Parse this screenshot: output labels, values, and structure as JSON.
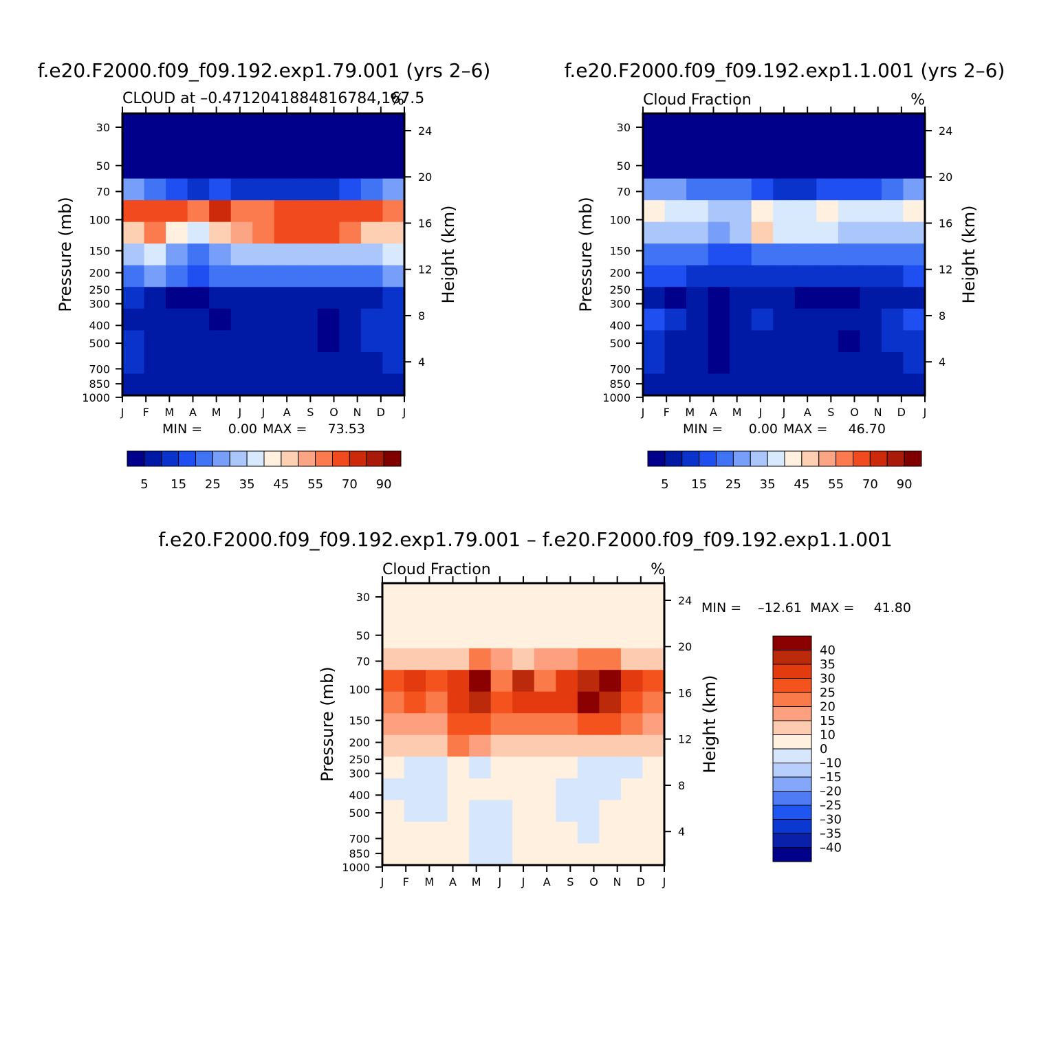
{
  "colors": {
    "cloud_scale": [
      "#00008a",
      "#001aa5",
      "#0a33cc",
      "#1f4ff0",
      "#4074f5",
      "#779ef8",
      "#abc6fa",
      "#d8e8fd",
      "#fff0e0",
      "#fdd0b4",
      "#fca585",
      "#fb7a4e",
      "#f04a1e",
      "#cc2a0b",
      "#aa1a08",
      "#800000"
    ],
    "diff_scale": [
      "#00008a",
      "#0a1faa",
      "#0a38d0",
      "#1f55f0",
      "#4f7cf5",
      "#85a7fa",
      "#b8cffc",
      "#d6e6fd",
      "#fff0e0",
      "#fdcbb0",
      "#fca080",
      "#fb7a4a",
      "#f5531e",
      "#e33a10",
      "#bb2a0a",
      "#8b0000"
    ]
  },
  "chart_data": [
    {
      "id": "panel_1",
      "type": "heatmap",
      "title": "f.e20.F2000.f09_f09.192.exp1.79.001 (yrs 2–6)",
      "subtitle_left": "CLOUD at –0.4712041884816784,167.5",
      "subtitle_right": "%",
      "x_ticks": [
        "J",
        "F",
        "M",
        "A",
        "M",
        "J",
        "J",
        "A",
        "S",
        "O",
        "N",
        "D",
        "J"
      ],
      "y_ticks_pressure": [
        "30",
        "50",
        "70",
        "100",
        "150",
        "200",
        "250",
        "300",
        "400",
        "500",
        "700",
        "850",
        "1000"
      ],
      "y_ticks_height": [
        "24",
        "20",
        "16",
        "12",
        "8",
        "4"
      ],
      "ylabel_left": "Pressure (mb)",
      "ylabel_right": "Height (km)",
      "min_label": "MIN =",
      "min_value": "0.00",
      "max_label": "MAX =",
      "max_value": "73.53",
      "colorbar_labels": [
        "5",
        "15",
        "25",
        "35",
        "45",
        "55",
        "70",
        "90"
      ],
      "values": [
        [
          0,
          0,
          0,
          0,
          0,
          0,
          0,
          0,
          0,
          0,
          0,
          0,
          0
        ],
        [
          0,
          0,
          0,
          0,
          0,
          0,
          0,
          0,
          0,
          0,
          0,
          0,
          0
        ],
        [
          0,
          0,
          0,
          0,
          0,
          0,
          0,
          0,
          0,
          0,
          0,
          0,
          0
        ],
        [
          25,
          22,
          18,
          12,
          18,
          10,
          10,
          10,
          12,
          12,
          15,
          22,
          25
        ],
        [
          60,
          68,
          60,
          58,
          72,
          55,
          58,
          60,
          63,
          66,
          64,
          62,
          58
        ],
        [
          45,
          55,
          40,
          38,
          45,
          50,
          58,
          60,
          60,
          62,
          58,
          48,
          45
        ],
        [
          30,
          35,
          25,
          22,
          28,
          30,
          32,
          32,
          30,
          30,
          32,
          32,
          35
        ],
        [
          22,
          25,
          20,
          18,
          22,
          22,
          20,
          22,
          22,
          22,
          22,
          22,
          25
        ],
        [
          10,
          8,
          4,
          4,
          5,
          7,
          7,
          7,
          6,
          7,
          7,
          8,
          10
        ],
        [
          8,
          8,
          8,
          7,
          4,
          8,
          8,
          8,
          7,
          3,
          6,
          10,
          12
        ],
        [
          10,
          8,
          8,
          7,
          7,
          8,
          8,
          8,
          6,
          3,
          6,
          10,
          14
        ],
        [
          10,
          8,
          6,
          7,
          5,
          8,
          8,
          8,
          7,
          7,
          7,
          8,
          10
        ],
        [
          9,
          8,
          8,
          8,
          8,
          8,
          8,
          8,
          8,
          8,
          8,
          8,
          9
        ]
      ]
    },
    {
      "id": "panel_2",
      "type": "heatmap",
      "title": "f.e20.F2000.f09_f09.192.exp1.1.001 (yrs 2–6)",
      "subtitle_left": "Cloud Fraction",
      "subtitle_right": "%",
      "x_ticks": [
        "J",
        "F",
        "M",
        "A",
        "M",
        "J",
        "J",
        "A",
        "S",
        "O",
        "N",
        "D",
        "J"
      ],
      "y_ticks_pressure": [
        "30",
        "50",
        "70",
        "100",
        "150",
        "200",
        "250",
        "300",
        "400",
        "500",
        "700",
        "850",
        "1000"
      ],
      "y_ticks_height": [
        "24",
        "20",
        "16",
        "12",
        "8",
        "4"
      ],
      "ylabel_left": "Pressure (mb)",
      "ylabel_right": "Height (km)",
      "min_label": "MIN =",
      "min_value": "0.00",
      "max_label": "MAX =",
      "max_value": "46.70",
      "colorbar_labels": [
        "5",
        "15",
        "25",
        "35",
        "45",
        "55",
        "70",
        "90"
      ],
      "values": [
        [
          0,
          0,
          0,
          0,
          0,
          0,
          0,
          0,
          0,
          0,
          0,
          0,
          0
        ],
        [
          0,
          0,
          0,
          0,
          0,
          0,
          0,
          0,
          0,
          0,
          0,
          0,
          0
        ],
        [
          0,
          0,
          0,
          0,
          0,
          0,
          0,
          0,
          0,
          0,
          0,
          0,
          0
        ],
        [
          25,
          25,
          20,
          20,
          20,
          15,
          12,
          12,
          15,
          15,
          15,
          20,
          25
        ],
        [
          40,
          38,
          35,
          30,
          30,
          42,
          35,
          38,
          42,
          35,
          35,
          35,
          40
        ],
        [
          33,
          33,
          30,
          28,
          32,
          45,
          35,
          35,
          35,
          32,
          32,
          32,
          33
        ],
        [
          20,
          20,
          20,
          18,
          18,
          22,
          22,
          22,
          22,
          22,
          22,
          22,
          20
        ],
        [
          15,
          15,
          14,
          12,
          12,
          14,
          14,
          14,
          14,
          14,
          14,
          14,
          15
        ],
        [
          6,
          4,
          5,
          2,
          5,
          6,
          6,
          3,
          2,
          3,
          5,
          6,
          6
        ],
        [
          18,
          12,
          8,
          3,
          8,
          10,
          8,
          8,
          8,
          5,
          8,
          12,
          18
        ],
        [
          12,
          8,
          8,
          3,
          8,
          8,
          8,
          8,
          8,
          4,
          8,
          10,
          14
        ],
        [
          10,
          8,
          8,
          3,
          8,
          8,
          8,
          8,
          8,
          8,
          8,
          8,
          10
        ],
        [
          8,
          8,
          8,
          8,
          8,
          8,
          8,
          8,
          8,
          8,
          8,
          8,
          8
        ]
      ]
    },
    {
      "id": "panel_diff",
      "type": "heatmap",
      "title": "f.e20.F2000.f09_f09.192.exp1.79.001 – f.e20.F2000.f09_f09.192.exp1.1.001",
      "subtitle_left": "Cloud Fraction",
      "subtitle_right": "%",
      "x_ticks": [
        "J",
        "F",
        "M",
        "A",
        "M",
        "J",
        "J",
        "A",
        "S",
        "O",
        "N",
        "D",
        "J"
      ],
      "y_ticks_pressure": [
        "30",
        "50",
        "70",
        "100",
        "150",
        "200",
        "250",
        "300",
        "400",
        "500",
        "700",
        "850",
        "1000"
      ],
      "y_ticks_height": [
        "24",
        "20",
        "16",
        "12",
        "8",
        "4"
      ],
      "ylabel_left": "Pressure (mb)",
      "ylabel_right": "Height (km)",
      "min_label": "MIN =",
      "min_value": "–12.61",
      "max_label": "MAX =",
      "max_value": "41.80",
      "colorbar_labels": [
        "40",
        "35",
        "30",
        "25",
        "20",
        "15",
        "10",
        "0",
        "–10",
        "–15",
        "–20",
        "–25",
        "–30",
        "–35",
        "–40"
      ],
      "values": [
        [
          0,
          0,
          0,
          0,
          0,
          0,
          0,
          0,
          0,
          0,
          0,
          0,
          0
        ],
        [
          0,
          0,
          0,
          -3,
          0,
          0,
          0,
          0,
          0,
          0,
          0,
          0,
          0
        ],
        [
          0,
          0,
          0,
          -3,
          0,
          0,
          0,
          0,
          0,
          0,
          0,
          0,
          0
        ],
        [
          5,
          8,
          8,
          5,
          15,
          10,
          5,
          10,
          10,
          15,
          15,
          8,
          5
        ],
        [
          20,
          25,
          20,
          28,
          38,
          15,
          30,
          15,
          25,
          30,
          35,
          28,
          20
        ],
        [
          15,
          20,
          15,
          28,
          30,
          22,
          25,
          25,
          28,
          35,
          30,
          20,
          15
        ],
        [
          10,
          12,
          10,
          22,
          20,
          18,
          18,
          18,
          18,
          22,
          20,
          15,
          10
        ],
        [
          5,
          8,
          8,
          15,
          10,
          8,
          6,
          8,
          8,
          8,
          8,
          8,
          5
        ],
        [
          0,
          -5,
          -5,
          0,
          -5,
          0,
          0,
          0,
          0,
          -5,
          -5,
          -5,
          -3
        ],
        [
          -5,
          -5,
          -5,
          0,
          0,
          0,
          0,
          0,
          -5,
          -5,
          -5,
          -3,
          0
        ],
        [
          0,
          -5,
          -5,
          0,
          -5,
          -5,
          0,
          0,
          -5,
          -5,
          0,
          0,
          0
        ],
        [
          0,
          0,
          0,
          0,
          -5,
          -5,
          0,
          0,
          0,
          -5,
          0,
          0,
          0
        ],
        [
          0,
          0,
          0,
          0,
          -5,
          -5,
          0,
          0,
          0,
          -3,
          0,
          0,
          0
        ]
      ]
    }
  ]
}
